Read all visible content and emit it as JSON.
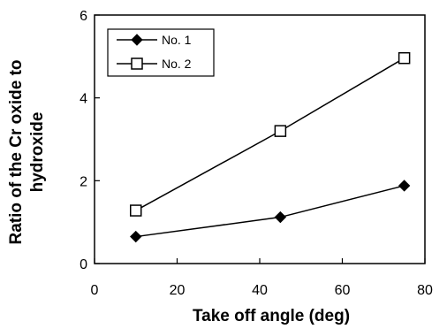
{
  "chart_data": {
    "type": "line",
    "title": "",
    "xlabel": "Take off angle (deg)",
    "ylabel_lines": [
      "Ratio of the Cr oxide to",
      "hydroxide"
    ],
    "xlim": [
      0,
      80
    ],
    "ylim": [
      0,
      6
    ],
    "xticks": [
      0,
      20,
      40,
      60,
      80
    ],
    "yticks": [
      0,
      2,
      4,
      6
    ],
    "grid": false,
    "legend_position": "top-left",
    "x": [
      10,
      45,
      75
    ],
    "series": [
      {
        "name": "No. 1",
        "marker": "filled-diamond",
        "color": "#000000",
        "values": [
          0.65,
          1.12,
          1.88
        ]
      },
      {
        "name": "No. 2",
        "marker": "open-square",
        "color": "#000000",
        "values": [
          1.28,
          3.2,
          4.96
        ]
      }
    ]
  }
}
